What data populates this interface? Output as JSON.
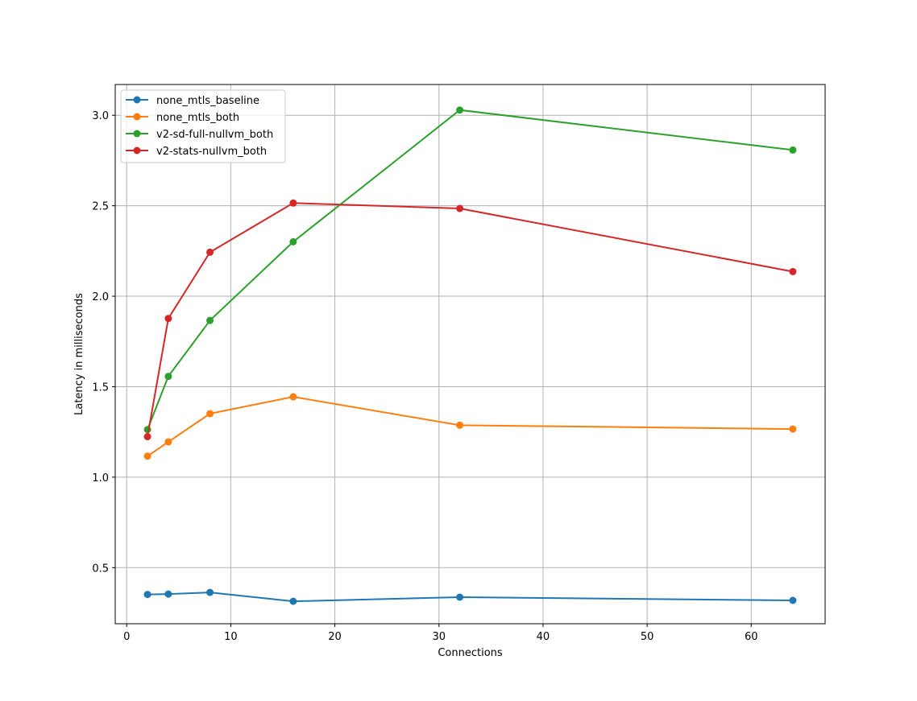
{
  "chart_data": {
    "type": "line",
    "title": "",
    "xlabel": "Connections",
    "ylabel": "Latency in milliseconds",
    "xlim": [
      -1.1,
      67.1
    ],
    "ylim": [
      0.19,
      3.17
    ],
    "xticks": [
      0,
      10,
      20,
      30,
      40,
      50,
      60
    ],
    "yticks": [
      0.5,
      1.0,
      1.5,
      2.0,
      2.5,
      3.0
    ],
    "xtick_labels": [
      "0",
      "10",
      "20",
      "30",
      "40",
      "50",
      "60"
    ],
    "ytick_labels": [
      "0.5",
      "1.0",
      "1.5",
      "2.0",
      "2.5",
      "3.0"
    ],
    "grid": true,
    "legend_position": "top-left",
    "x": [
      2,
      4,
      8,
      16,
      32,
      64
    ],
    "series": [
      {
        "name": "none_mtls_baseline",
        "color": "#1f77b4",
        "values": [
          0.352,
          0.354,
          0.363,
          0.314,
          0.337,
          0.319
        ]
      },
      {
        "name": "none_mtls_both",
        "color": "#ff7f0e",
        "values": [
          1.116,
          1.195,
          1.351,
          1.444,
          1.287,
          1.266
        ]
      },
      {
        "name": "v2-sd-full-nullvm_both",
        "color": "#2ca02c",
        "values": [
          1.263,
          1.557,
          1.866,
          2.301,
          3.029,
          2.808
        ]
      },
      {
        "name": "v2-stats-nullvm_both",
        "color": "#d62728",
        "values": [
          1.224,
          1.877,
          2.243,
          2.515,
          2.485,
          2.136
        ]
      }
    ]
  }
}
